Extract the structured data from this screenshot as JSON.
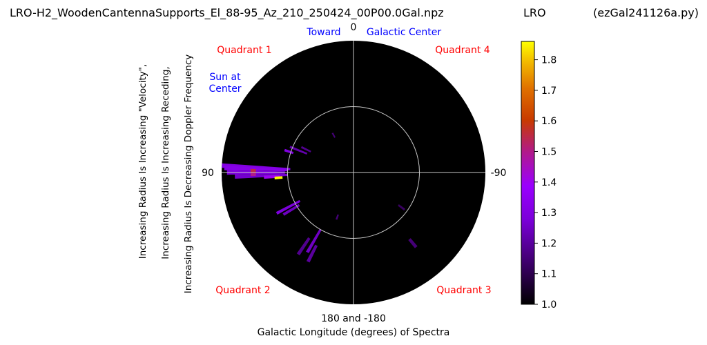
{
  "header": {
    "filename": "LRO-H2_WoodenCantennaSupports_El_88-95_Az_210_250424_00P00.0Gal.npz",
    "station": "LRO",
    "script": "(ezGal241126a.py)"
  },
  "chart_data": {
    "type": "heatmap",
    "projection": "polar",
    "theta_tick_labels": {
      "top": "0",
      "left": "90",
      "right": "-90",
      "bottom": "180 and -180"
    },
    "xlabel": "Galactic Longitude (degrees) of Spectra",
    "ylabel_lines": [
      "Increasing Radius Is Increasing \"Velocity\",",
      "Increasing Radius Is Increasing Receding,",
      "Increasing Radius Is Decreasing Doppler Frequency"
    ],
    "annotations": {
      "toward": "Toward",
      "galactic_center": "Galactic Center",
      "sun_at_center": [
        "Sun at",
        "Center"
      ],
      "quadrant_1": "Quadrant 1",
      "quadrant_2": "Quadrant 2",
      "quadrant_3": "Quadrant 3",
      "quadrant_4": "Quadrant 4"
    },
    "colors": {
      "annotation_blue": "#0000ff",
      "annotation_red": "#ff0000",
      "background": "#000000",
      "grid": "#c8c8c8"
    },
    "reference_circle_radius_fraction": 0.5,
    "grid": true,
    "colorbar": {
      "colormap": "gnuplot",
      "vmin": 1.0,
      "vmax": 1.86,
      "ticks": [
        "1.0",
        "1.1",
        "1.2",
        "1.3",
        "1.4",
        "1.5",
        "1.6",
        "1.7",
        "1.8"
      ],
      "tick_values": [
        1.0,
        1.1,
        1.2,
        1.3,
        1.4,
        1.5,
        1.6,
        1.7,
        1.8
      ]
    },
    "segments": [
      {
        "lon": 72,
        "r0": 0.48,
        "r1": 0.55,
        "v": 1.3
      },
      {
        "lon": 68,
        "r0": 0.38,
        "r1": 0.52,
        "v": 1.22
      },
      {
        "lon": 64,
        "r0": 0.36,
        "r1": 0.44,
        "v": 1.18
      },
      {
        "lon": 28,
        "r0": 0.3,
        "r1": 0.34,
        "v": 1.15
      },
      {
        "lon": 87,
        "r0": 0.48,
        "r1": 1.0,
        "v": 1.3
      },
      {
        "lon": 88,
        "r0": 0.5,
        "r1": 0.98,
        "v": 1.32
      },
      {
        "lon": 90,
        "r0": 0.52,
        "r1": 0.96,
        "v": 1.28
      },
      {
        "lon": 92,
        "r0": 0.5,
        "r1": 0.9,
        "v": 1.26
      },
      {
        "lon": 93,
        "r0": 0.56,
        "r1": 0.68,
        "v": 1.4
      },
      {
        "lon": 89,
        "r0": 0.74,
        "r1": 0.78,
        "v": 1.55
      },
      {
        "lon": 91,
        "r0": 0.74,
        "r1": 0.78,
        "v": 1.5
      },
      {
        "lon": 93,
        "r0": 1.0,
        "r1": 1.08,
        "v": 1.25
      },
      {
        "lon": 94,
        "r0": 0.54,
        "r1": 0.6,
        "v": 1.86
      },
      {
        "lon": 118,
        "r0": 0.46,
        "r1": 0.66,
        "v": 1.28
      },
      {
        "lon": 121,
        "r0": 0.48,
        "r1": 0.62,
        "v": 1.24
      },
      {
        "lon": 150,
        "r0": 0.5,
        "r1": 0.7,
        "v": 1.25
      },
      {
        "lon": 146,
        "r0": 0.6,
        "r1": 0.75,
        "v": 1.18
      },
      {
        "lon": 153,
        "r0": 0.62,
        "r1": 0.76,
        "v": 1.2
      },
      {
        "lon": 160,
        "r0": 0.34,
        "r1": 0.38,
        "v": 1.15
      },
      {
        "lon": -140,
        "r0": 0.66,
        "r1": 0.74,
        "v": 1.15
      },
      {
        "lon": -126,
        "r0": 0.42,
        "r1": 0.48,
        "v": 1.12
      }
    ]
  }
}
